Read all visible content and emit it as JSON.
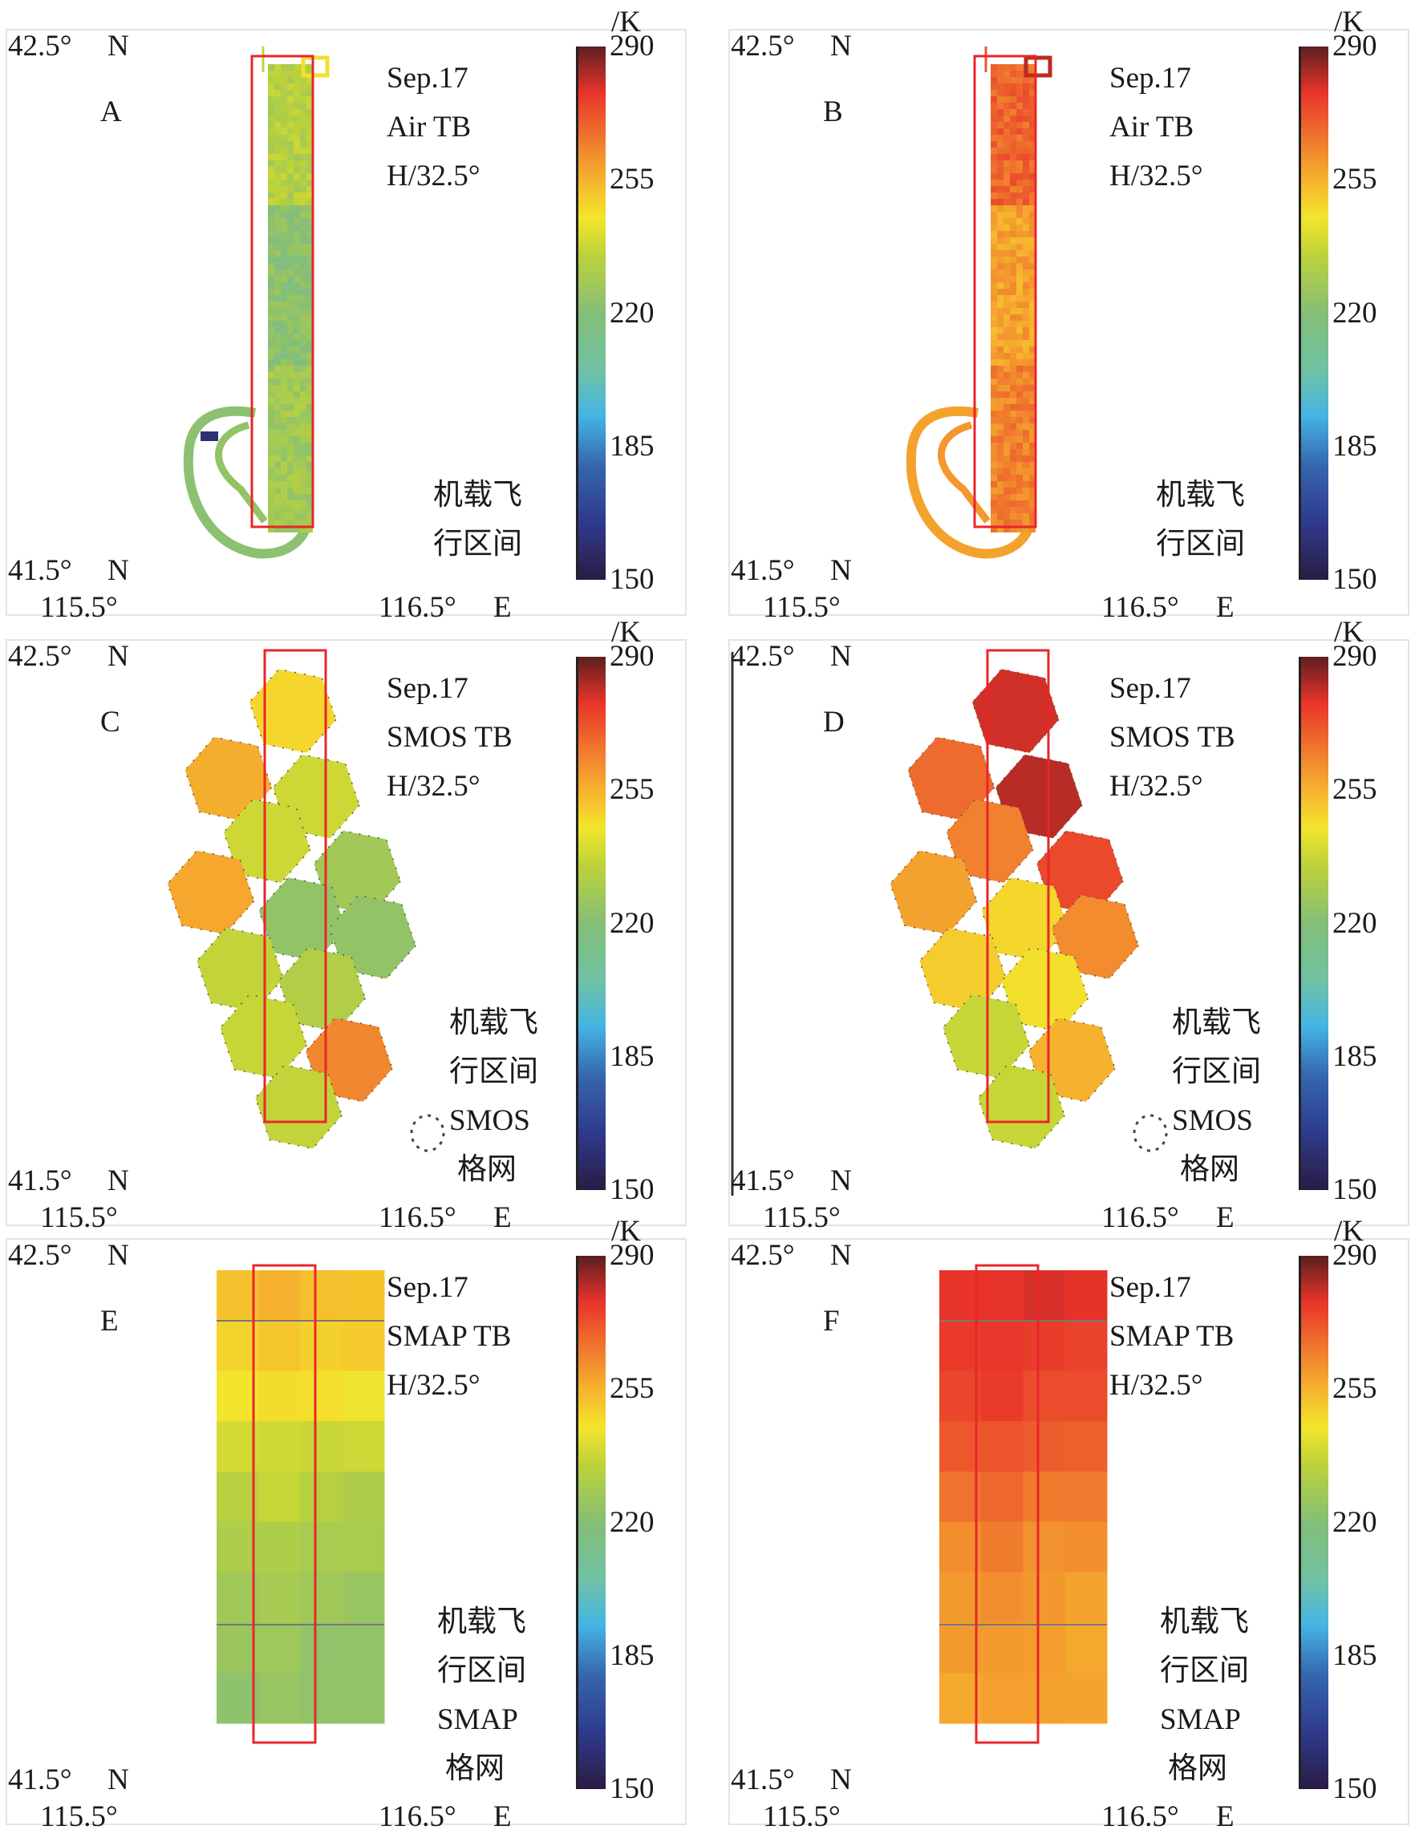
{
  "colormap": {
    "stops": [
      {
        "v": 150,
        "c": "#2a1c45"
      },
      {
        "v": 165,
        "c": "#2f3a8c"
      },
      {
        "v": 180,
        "c": "#3566b0"
      },
      {
        "v": 193,
        "c": "#45b4e4"
      },
      {
        "v": 205,
        "c": "#6fc2a3"
      },
      {
        "v": 220,
        "c": "#84be78"
      },
      {
        "v": 235,
        "c": "#bcd23a"
      },
      {
        "v": 245,
        "c": "#f3e52c"
      },
      {
        "v": 255,
        "c": "#f6b22e"
      },
      {
        "v": 265,
        "c": "#f07c2e"
      },
      {
        "v": 278,
        "c": "#e8332a"
      },
      {
        "v": 290,
        "c": "#5c1f1f"
      }
    ],
    "unit": "/K",
    "ticks": [
      "290",
      "255",
      "220",
      "185",
      "150"
    ],
    "range": [
      150,
      290
    ]
  },
  "axes": {
    "lat_top": "42.5°",
    "lat_bottom": "41.5°",
    "lat_dir": "N",
    "lon_left": "115.5°",
    "lon_right": "116.5°",
    "lon_dir": "E"
  },
  "box_color": "#e8262a",
  "panels": [
    {
      "id": "A",
      "date": "Sep.17",
      "product": "Air TB",
      "pol": "H/32.5°",
      "legend": [
        "机载飞",
        "行区间"
      ],
      "kind": "air",
      "base_tb": 228
    },
    {
      "id": "B",
      "date": "Sep.17",
      "product": "Air TB",
      "pol": "H/32.5°",
      "legend": [
        "机载飞",
        "行区间"
      ],
      "kind": "air",
      "base_tb": 264
    },
    {
      "id": "C",
      "date": "Sep.17",
      "product": "SMOS TB",
      "pol": "H/32.5°",
      "legend": [
        "机载飞",
        "行区间",
        "SMOS",
        "格网"
      ],
      "kind": "smos",
      "cells_tb": [
        248,
        256,
        238,
        238,
        228,
        257,
        224,
        224,
        236,
        232,
        237,
        263,
        236
      ]
    },
    {
      "id": "D",
      "date": "Sep.17",
      "product": "SMOS TB",
      "pol": "H/32.5°",
      "legend": [
        "机载飞",
        "行区间",
        "SMOS",
        "格网"
      ],
      "kind": "smos",
      "cells_tb": [
        280,
        268,
        282,
        264,
        274,
        258,
        248,
        262,
        250,
        246,
        237,
        255,
        237
      ]
    },
    {
      "id": "E",
      "date": "Sep.17",
      "product": "SMAP TB",
      "pol": "H/32.5°",
      "legend": [
        "机载飞",
        "行区间",
        "SMAP",
        "格网"
      ],
      "kind": "smap",
      "rows_tb": [
        252,
        250,
        246,
        238,
        234,
        230,
        227,
        225,
        224
      ]
    },
    {
      "id": "F",
      "date": "Sep.17",
      "product": "SMAP TB",
      "pol": "H/32.5°",
      "legend": [
        "机载飞",
        "行区间",
        "SMAP",
        "格网"
      ],
      "kind": "smap",
      "rows_tb": [
        278,
        276,
        274,
        270,
        266,
        262,
        260,
        259,
        258
      ]
    }
  ]
}
